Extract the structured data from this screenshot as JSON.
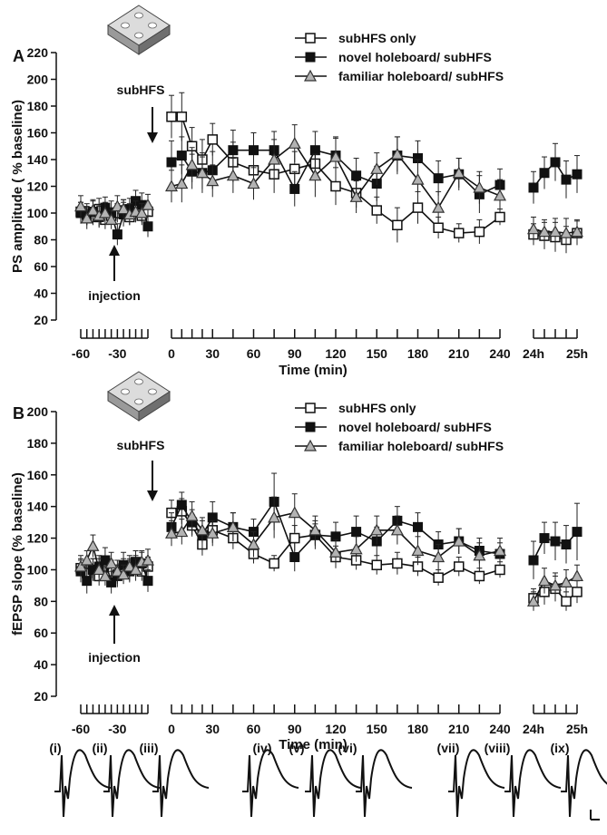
{
  "figure": {
    "traces": {
      "labels": [
        "(i)",
        "(ii)",
        "(iii)",
        "(iv)",
        "(v)",
        "(vi)",
        "(vii)",
        "(viii)",
        "(ix)"
      ]
    }
  },
  "chart_data": [
    {
      "type": "line",
      "panel": "A",
      "ylabel": "PS amplitude ( % baseline)",
      "xlabel": "Time (min)",
      "ylim": [
        20,
        220
      ],
      "yticks": [
        20,
        40,
        60,
        80,
        100,
        120,
        140,
        160,
        180,
        200,
        220
      ],
      "xticks": [
        "-60",
        "-30",
        "0",
        "30",
        "60",
        "90",
        "120",
        "150",
        "180",
        "210",
        "240",
        "24h",
        "25h"
      ],
      "legend": {
        "position": "top-right",
        "entries": [
          "subHFS only",
          "novel holeboard/ subHFS",
          "familiar holeboard/ subHFS"
        ]
      },
      "annotations": [
        "subHFS",
        "injection"
      ],
      "series": [
        {
          "name": "subHFS only",
          "marker": "open-square",
          "segments": [
            {
              "x": [
                -60,
                -55,
                -50,
                -45,
                -40,
                -35,
                -30,
                -25,
                -20,
                -15,
                -10,
                -5
              ],
              "y": [
                101,
                99,
                97,
                103,
                95,
                98,
                100,
                102,
                97,
                104,
                98,
                101
              ],
              "err": [
                7,
                8,
                6,
                8,
                7,
                6,
                7,
                8,
                6,
                8,
                7,
                6
              ]
            },
            {
              "x": [
                0,
                7.5,
                15,
                22.5,
                30,
                45,
                60,
                75,
                90,
                105,
                120,
                135,
                150,
                165,
                180,
                195,
                210,
                225,
                240
              ],
              "y": [
                172,
                172,
                150,
                140,
                155,
                138,
                132,
                129,
                133,
                137,
                120,
                115,
                102,
                91,
                104,
                89,
                85,
                86,
                97
              ],
              "err": [
                16,
                18,
                14,
                15,
                12,
                15,
                12,
                14,
                13,
                12,
                14,
                11,
                10,
                13,
                12,
                8,
                7,
                9,
                6
              ]
            },
            {
              "x": [
                "24h",
                "24h+15",
                "24h+30",
                "24h+45",
                "25h"
              ],
              "y": [
                84,
                83,
                82,
                80,
                85
              ],
              "err": [
                8,
                10,
                11,
                10,
                9
              ]
            }
          ]
        },
        {
          "name": "novel holeboard/ subHFS",
          "marker": "filled-square",
          "segments": [
            {
              "x": [
                -60,
                -55,
                -50,
                -45,
                -40,
                -35,
                -30,
                -25,
                -20,
                -15,
                -10,
                -5
              ],
              "y": [
                100,
                98,
                101,
                97,
                104,
                100,
                84,
                99,
                103,
                109,
                106,
                90
              ],
              "err": [
                8,
                7,
                9,
                8,
                8,
                9,
                8,
                9,
                8,
                8,
                9,
                8
              ]
            },
            {
              "x": [
                0,
                7.5,
                15,
                22.5,
                30,
                45,
                60,
                75,
                90,
                105,
                120,
                135,
                150,
                165,
                180,
                195,
                210,
                225,
                240
              ],
              "y": [
                138,
                143,
                131,
                130,
                132,
                147,
                147,
                147,
                118,
                147,
                143,
                128,
                122,
                143,
                141,
                126,
                129,
                114,
                121
              ],
              "err": [
                16,
                14,
                13,
                15,
                14,
                15,
                13,
                14,
                13,
                14,
                14,
                13,
                13,
                14,
                13,
                13,
                12,
                14,
                12
              ]
            },
            {
              "x": [
                "24h",
                "24h+15",
                "24h+30",
                "24h+45",
                "25h"
              ],
              "y": [
                119,
                130,
                138,
                125,
                129
              ],
              "err": [
                12,
                12,
                14,
                14,
                14
              ]
            }
          ]
        },
        {
          "name": "familiar holeboard/ subHFS",
          "marker": "open-triangle",
          "segments": [
            {
              "x": [
                -60,
                -55,
                -50,
                -45,
                -40,
                -35,
                -30,
                -25,
                -20,
                -15,
                -10,
                -5
              ],
              "y": [
                105,
                96,
                102,
                98,
                100,
                95,
                105,
                103,
                99,
                101,
                100,
                106
              ],
              "err": [
                8,
                8,
                7,
                8,
                8,
                7,
                8,
                7,
                8,
                8,
                7,
                8
              ]
            },
            {
              "x": [
                0,
                7.5,
                15,
                22.5,
                30,
                45,
                60,
                75,
                90,
                105,
                120,
                135,
                150,
                165,
                180,
                195,
                210,
                225,
                240
              ],
              "y": [
                120,
                122,
                136,
                130,
                124,
                128,
                122,
                140,
                152,
                128,
                142,
                112,
                133,
                144,
                125,
                104,
                130,
                119,
                113
              ],
              "err": [
                12,
                14,
                13,
                12,
                12,
                13,
                12,
                15,
                14,
                16,
                14,
                12,
                12,
                13,
                15,
                12,
                11,
                12,
                12
              ]
            },
            {
              "x": [
                "24h",
                "24h+15",
                "24h+30",
                "24h+45",
                "25h"
              ],
              "y": [
                88,
                86,
                86,
                85,
                86
              ],
              "err": [
                9,
                9,
                10,
                11,
                9
              ]
            }
          ]
        }
      ]
    },
    {
      "type": "line",
      "panel": "B",
      "ylabel": "fEPSP slope (% baseline)",
      "xlabel": "Time (min)",
      "ylim": [
        20,
        200
      ],
      "yticks": [
        20,
        40,
        60,
        80,
        100,
        120,
        140,
        160,
        180,
        200
      ],
      "xticks": [
        "-60",
        "-30",
        "0",
        "30",
        "60",
        "90",
        "120",
        "150",
        "180",
        "210",
        "240",
        "24h",
        "25h"
      ],
      "legend": {
        "position": "top-right",
        "entries": [
          "subHFS only",
          "novel holeboard/ subHFS",
          "familiar holeboard/ subHFS"
        ]
      },
      "annotations": [
        "subHFS",
        "injection"
      ],
      "series": [
        {
          "name": "subHFS only",
          "marker": "open-square",
          "segments": [
            {
              "x": [
                -60,
                -55,
                -50,
                -45,
                -40,
                -35,
                -30,
                -25,
                -20,
                -15,
                -10,
                -5
              ],
              "y": [
                101,
                98,
                100,
                96,
                102,
                99,
                97,
                101,
                100,
                103,
                99,
                102
              ],
              "err": [
                6,
                6,
                7,
                6,
                6,
                7,
                6,
                6,
                7,
                6,
                6,
                6
              ]
            },
            {
              "x": [
                0,
                7.5,
                15,
                22.5,
                30,
                45,
                60,
                75,
                90,
                105,
                120,
                135,
                150,
                165,
                180,
                195,
                210,
                225,
                240
              ],
              "y": [
                136,
                137,
                128,
                116,
                125,
                120,
                110,
                104,
                120,
                122,
                108,
                106,
                103,
                104,
                102,
                95,
                102,
                96,
                100
              ],
              "err": [
                8,
                8,
                7,
                7,
                8,
                7,
                6,
                5,
                8,
                7,
                7,
                6,
                6,
                7,
                6,
                5,
                6,
                5,
                5
              ]
            },
            {
              "x": [
                "24h",
                "24h+15",
                "24h+30",
                "24h+45",
                "25h"
              ],
              "y": [
                82,
                86,
                88,
                80,
                86
              ],
              "err": [
                6,
                8,
                8,
                6,
                7
              ]
            }
          ]
        },
        {
          "name": "novel holeboard/ subHFS",
          "marker": "filled-square",
          "segments": [
            {
              "x": [
                -60,
                -55,
                -50,
                -45,
                -40,
                -35,
                -30,
                -25,
                -20,
                -15,
                -10,
                -5
              ],
              "y": [
                99,
                93,
                100,
                102,
                106,
                92,
                96,
                103,
                99,
                105,
                104,
                93
              ],
              "err": [
                7,
                8,
                7,
                7,
                8,
                7,
                7,
                8,
                7,
                7,
                8,
                7
              ]
            },
            {
              "x": [
                0,
                7.5,
                15,
                22.5,
                30,
                45,
                60,
                75,
                90,
                105,
                120,
                135,
                150,
                165,
                180,
                195,
                210,
                225,
                240
              ],
              "y": [
                127,
                141,
                130,
                122,
                133,
                127,
                124,
                143,
                108,
                122,
                121,
                124,
                118,
                131,
                127,
                116,
                118,
                112,
                110
              ],
              "err": [
                9,
                8,
                8,
                9,
                10,
                9,
                8,
                18,
                9,
                9,
                9,
                10,
                9,
                9,
                9,
                8,
                8,
                8,
                7
              ]
            },
            {
              "x": [
                "24h",
                "24h+15",
                "24h+30",
                "24h+45",
                "25h"
              ],
              "y": [
                106,
                120,
                118,
                116,
                124
              ],
              "err": [
                12,
                10,
                12,
                12,
                18
              ]
            }
          ]
        },
        {
          "name": "familiar holeboard/ subHFS",
          "marker": "open-triangle",
          "segments": [
            {
              "x": [
                -60,
                -55,
                -50,
                -45,
                -40,
                -35,
                -30,
                -25,
                -20,
                -15,
                -10,
                -5
              ],
              "y": [
                102,
                106,
                115,
                100,
                96,
                104,
                99,
                97,
                102,
                100,
                105,
                106
              ],
              "err": [
                7,
                6,
                7,
                7,
                6,
                7,
                7,
                6,
                7,
                7,
                6,
                7
              ]
            },
            {
              "x": [
                0,
                7.5,
                15,
                22.5,
                30,
                45,
                60,
                75,
                90,
                105,
                120,
                135,
                150,
                165,
                180,
                195,
                210,
                225,
                240
              ],
              "y": [
                123,
                124,
                134,
                125,
                123,
                127,
                116,
                133,
                136,
                125,
                111,
                113,
                125,
                125,
                112,
                108,
                118,
                109,
                112
              ],
              "err": [
                8,
                8,
                9,
                8,
                8,
                9,
                8,
                13,
                12,
                9,
                8,
                8,
                9,
                9,
                9,
                8,
                8,
                8,
                8
              ]
            },
            {
              "x": [
                "24h",
                "24h+15",
                "24h+30",
                "24h+45",
                "25h"
              ],
              "y": [
                80,
                93,
                90,
                92,
                96
              ],
              "err": [
                6,
                8,
                8,
                8,
                7
              ]
            }
          ]
        }
      ]
    }
  ]
}
